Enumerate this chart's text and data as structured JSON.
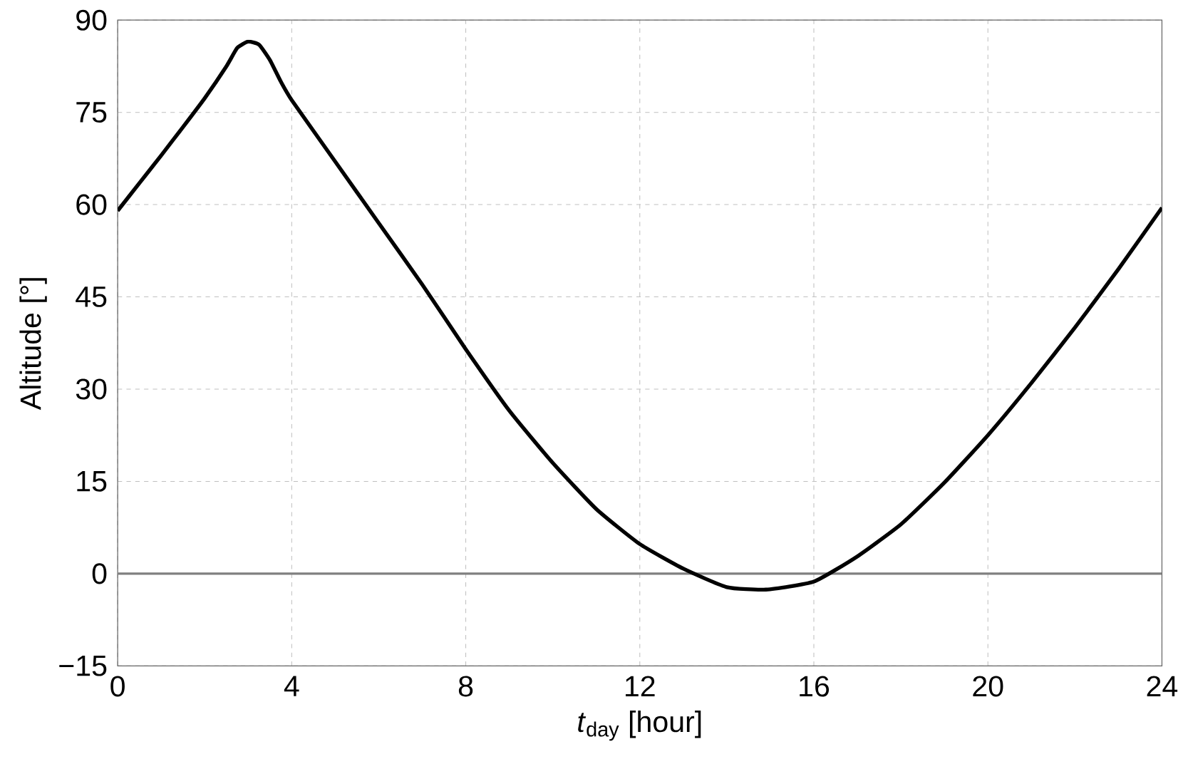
{
  "chart_data": {
    "type": "line",
    "xlabel": "*t*$_{day}$ [hour]",
    "ylabel": "Altitude [°]",
    "x": [
      0,
      0.5,
      1,
      1.5,
      2,
      2.5,
      2.75,
      3,
      3.25,
      3.5,
      3.75,
      4,
      5,
      6,
      7,
      8,
      9,
      10,
      11,
      12,
      13,
      14,
      14.9,
      16,
      17,
      18,
      19,
      20,
      21,
      22,
      23,
      24
    ],
    "series": [
      {
        "color": "#000000",
        "values": [
          59,
          63.5,
          68,
          72.6,
          77.3,
          82.5,
          85.5,
          86.5,
          86,
          83.5,
          80,
          77,
          67,
          57,
          47,
          36.5,
          26.5,
          18,
          10.5,
          4.8,
          0.8,
          -2.2,
          -2.6,
          -1.3,
          2.8,
          8,
          14.8,
          22.5,
          31,
          40,
          49.5,
          59.5
        ]
      }
    ],
    "xlim": [
      0,
      24
    ],
    "ylim": [
      -15,
      90
    ],
    "xticks": [
      0,
      4,
      8,
      12,
      16,
      20,
      24
    ],
    "yticks": [
      {
        "value": -15,
        "label": "−15"
      },
      0,
      15,
      30,
      45,
      60,
      75,
      90
    ],
    "ref_lines": [
      {
        "axis": "y",
        "value": 0,
        "color": "#808080"
      }
    ],
    "grid": true,
    "line_style": "solid",
    "marker": "none"
  }
}
